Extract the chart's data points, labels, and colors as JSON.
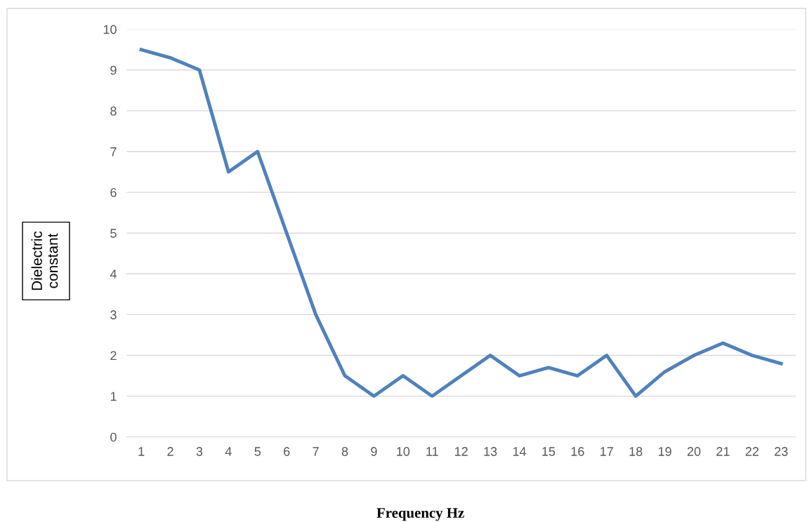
{
  "chart_data": {
    "type": "line",
    "xlabel": "Frequency Hz",
    "ylabel": "Dielectric\nconstant",
    "categories": [
      "1",
      "2",
      "3",
      "4",
      "5",
      "6",
      "7",
      "8",
      "9",
      "10",
      "11",
      "12",
      "13",
      "14",
      "15",
      "16",
      "17",
      "18",
      "19",
      "20",
      "21",
      "22",
      "23"
    ],
    "series": [
      {
        "color": "#4f81bd",
        "values": [
          9.5,
          9.3,
          9.0,
          6.5,
          7.0,
          5.0,
          3.0,
          1.5,
          1.0,
          1.5,
          1.0,
          1.5,
          2.0,
          1.5,
          1.7,
          1.5,
          2.0,
          1.0,
          1.6,
          2.0,
          2.3,
          2.0,
          1.8
        ]
      }
    ],
    "ylim": [
      0,
      10
    ],
    "yticks": [
      0,
      1,
      2,
      3,
      4,
      5,
      6,
      7,
      8,
      9,
      10
    ],
    "grid": "y",
    "legend": false,
    "marker": "none",
    "line_style": "solid"
  }
}
